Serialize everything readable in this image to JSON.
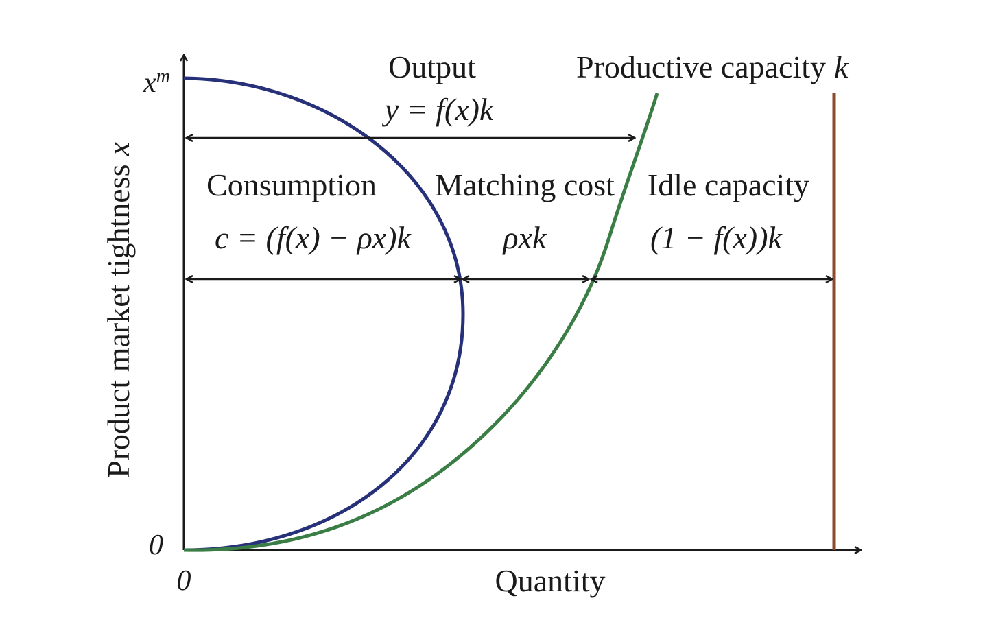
{
  "axes": {
    "x_label": "Quantity",
    "y_label": "Product market tightness",
    "y_label_var": "x",
    "origin_x_tick": "0",
    "origin_y_tick": "0",
    "y_max_tick_base": "x",
    "y_max_tick_sup": "m"
  },
  "labels": {
    "output_title": "Output",
    "output_formula": "y = f(x)k",
    "capacity_title": "Productive capacity",
    "capacity_var": "k",
    "consumption_title": "Consumption",
    "consumption_formula": "c = (f(x) − ρx)k",
    "matching_title": "Matching cost",
    "matching_formula": "ρxk",
    "idle_title": "Idle capacity",
    "idle_formula": "(1 − f(x))k"
  },
  "colors": {
    "consumption_curve": "#27317a",
    "output_curve": "#3a7d45",
    "capacity_line": "#8b4a2b",
    "axes": "#1a1a1a"
  }
}
